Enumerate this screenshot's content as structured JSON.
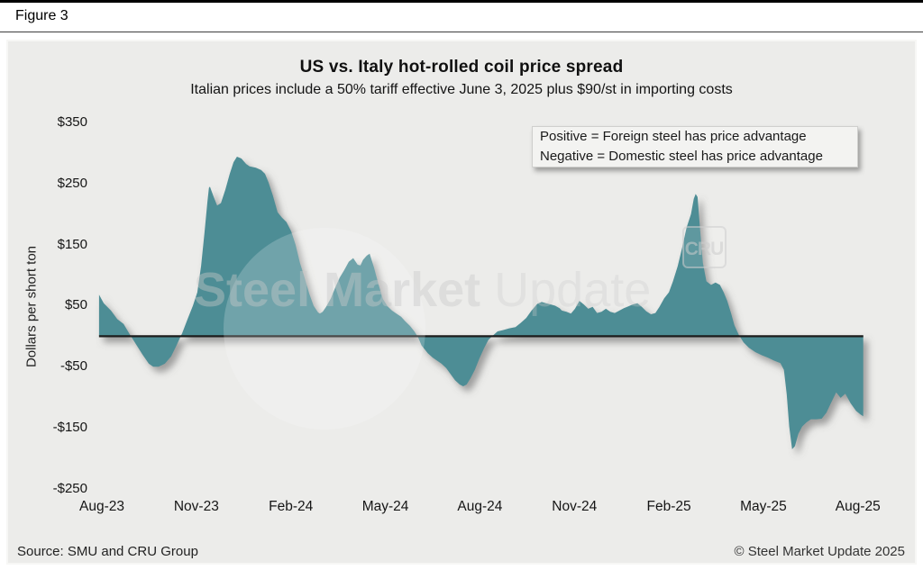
{
  "figure_label": "Figure 3",
  "footer": {
    "source": "Source: SMU and CRU Group",
    "copyright": "© Steel Market Update 2025"
  },
  "watermark": {
    "brand_bold": "Steel Market",
    "brand_light": "Update",
    "cru": "CRU"
  },
  "annotation": {
    "line1": "Positive = Foreign steel has price advantage",
    "line2": "Negative = Domestic steel has price advantage"
  },
  "colors": {
    "area": "#4e8d95",
    "zero_line": "#1b1b1b",
    "panel_bg": "#ececea",
    "annotation_bg": "#f3f3f1"
  },
  "chart_data": {
    "type": "area",
    "title": "US vs. Italy hot-rolled coil price spread",
    "subtitle": "Italian prices include a 50% tariff effective June 3, 2025 plus $90/st in importing costs",
    "ylabel": "Dollars per short ton",
    "xlabel": "",
    "ylim": [
      -250,
      350
    ],
    "x_unit": "months since Aug-2023",
    "grid": false,
    "legend_position": "none",
    "y_ticks": [
      {
        "value": 350,
        "label": "$350"
      },
      {
        "value": 250,
        "label": "$250"
      },
      {
        "value": 150,
        "label": "$150"
      },
      {
        "value": 50,
        "label": "$50"
      },
      {
        "value": -50,
        "label": "-$50"
      },
      {
        "value": -150,
        "label": "-$150"
      },
      {
        "value": -250,
        "label": "-$250"
      }
    ],
    "x_ticks": [
      {
        "month": 0,
        "label": "Aug-23"
      },
      {
        "month": 3,
        "label": "Nov-23"
      },
      {
        "month": 6,
        "label": "Feb-24"
      },
      {
        "month": 9,
        "label": "May-24"
      },
      {
        "month": 12,
        "label": "Aug-24"
      },
      {
        "month": 15,
        "label": "Nov-24"
      },
      {
        "month": 18,
        "label": "Feb-25"
      },
      {
        "month": 21,
        "label": "May-25"
      },
      {
        "month": 24,
        "label": "Aug-25"
      }
    ],
    "series": [
      {
        "name": "US minus Italy HRC price spread ($/short ton)",
        "points": [
          [
            -0.09,
            68
          ],
          [
            0.06,
            54
          ],
          [
            0.29,
            42
          ],
          [
            0.49,
            28
          ],
          [
            0.69,
            20
          ],
          [
            0.92,
            0
          ],
          [
            1.12,
            -16
          ],
          [
            1.29,
            -30
          ],
          [
            1.49,
            -45
          ],
          [
            1.63,
            -50
          ],
          [
            1.8,
            -50
          ],
          [
            2.0,
            -45
          ],
          [
            2.2,
            -33
          ],
          [
            2.37,
            -15
          ],
          [
            2.55,
            5
          ],
          [
            2.72,
            28
          ],
          [
            2.89,
            50
          ],
          [
            3.03,
            72
          ],
          [
            3.15,
            115
          ],
          [
            3.26,
            170
          ],
          [
            3.35,
            220
          ],
          [
            3.4,
            243
          ],
          [
            3.43,
            245
          ],
          [
            3.55,
            228
          ],
          [
            3.66,
            214
          ],
          [
            3.78,
            218
          ],
          [
            3.92,
            240
          ],
          [
            4.06,
            266
          ],
          [
            4.18,
            285
          ],
          [
            4.29,
            294
          ],
          [
            4.43,
            291
          ],
          [
            4.58,
            282
          ],
          [
            4.69,
            278
          ],
          [
            4.89,
            276
          ],
          [
            5.06,
            272
          ],
          [
            5.18,
            266
          ],
          [
            5.29,
            252
          ],
          [
            5.43,
            230
          ],
          [
            5.58,
            203
          ],
          [
            5.72,
            194
          ],
          [
            5.86,
            187
          ],
          [
            6.01,
            172
          ],
          [
            6.15,
            150
          ],
          [
            6.29,
            120
          ],
          [
            6.44,
            95
          ],
          [
            6.58,
            70
          ],
          [
            6.72,
            50
          ],
          [
            6.86,
            39
          ],
          [
            6.92,
            37
          ],
          [
            7.01,
            40
          ],
          [
            7.12,
            48
          ],
          [
            7.27,
            62
          ],
          [
            7.41,
            80
          ],
          [
            7.55,
            96
          ],
          [
            7.69,
            108
          ],
          [
            7.84,
            122
          ],
          [
            7.98,
            128
          ],
          [
            8.12,
            117
          ],
          [
            8.21,
            116
          ],
          [
            8.29,
            125
          ],
          [
            8.41,
            132
          ],
          [
            8.5,
            135
          ],
          [
            8.64,
            112
          ],
          [
            8.78,
            85
          ],
          [
            8.92,
            61
          ],
          [
            9.07,
            49
          ],
          [
            9.21,
            42
          ],
          [
            9.35,
            37
          ],
          [
            9.5,
            32
          ],
          [
            9.64,
            24
          ],
          [
            9.78,
            17
          ],
          [
            9.92,
            8
          ],
          [
            10.04,
            -2
          ],
          [
            10.15,
            -15
          ],
          [
            10.35,
            -28
          ],
          [
            10.5,
            -35
          ],
          [
            10.64,
            -40
          ],
          [
            10.78,
            -45
          ],
          [
            10.93,
            -52
          ],
          [
            11.07,
            -62
          ],
          [
            11.21,
            -72
          ],
          [
            11.36,
            -79
          ],
          [
            11.47,
            -82
          ],
          [
            11.58,
            -79
          ],
          [
            11.7,
            -69
          ],
          [
            11.84,
            -55
          ],
          [
            11.98,
            -37
          ],
          [
            12.13,
            -20
          ],
          [
            12.27,
            -6
          ],
          [
            12.41,
            1
          ],
          [
            12.56,
            8
          ],
          [
            12.73,
            10
          ],
          [
            12.93,
            13
          ],
          [
            13.13,
            15
          ],
          [
            13.3,
            22
          ],
          [
            13.47,
            30
          ],
          [
            13.64,
            42
          ],
          [
            13.82,
            53
          ],
          [
            13.96,
            56
          ],
          [
            14.1,
            54
          ],
          [
            14.25,
            52
          ],
          [
            14.39,
            50
          ],
          [
            14.53,
            46
          ],
          [
            14.6,
            42
          ],
          [
            14.75,
            40
          ],
          [
            14.89,
            37
          ],
          [
            15.02,
            45
          ],
          [
            15.16,
            58
          ],
          [
            15.3,
            52
          ],
          [
            15.44,
            45
          ],
          [
            15.58,
            48
          ],
          [
            15.72,
            38
          ],
          [
            15.86,
            40
          ],
          [
            16.0,
            45
          ],
          [
            16.14,
            40
          ],
          [
            16.28,
            38
          ],
          [
            16.43,
            42
          ],
          [
            16.57,
            46
          ],
          [
            16.71,
            49
          ],
          [
            16.85,
            52
          ],
          [
            17.0,
            54
          ],
          [
            17.14,
            48
          ],
          [
            17.28,
            41
          ],
          [
            17.43,
            36
          ],
          [
            17.57,
            38
          ],
          [
            17.7,
            48
          ],
          [
            17.85,
            62
          ],
          [
            18.0,
            72
          ],
          [
            18.13,
            90
          ],
          [
            18.28,
            115
          ],
          [
            18.42,
            145
          ],
          [
            18.56,
            178
          ],
          [
            18.7,
            200
          ],
          [
            18.79,
            225
          ],
          [
            18.85,
            233
          ],
          [
            18.91,
            228
          ],
          [
            18.99,
            175
          ],
          [
            19.08,
            120
          ],
          [
            19.19,
            90
          ],
          [
            19.34,
            84
          ],
          [
            19.48,
            88
          ],
          [
            19.62,
            84
          ],
          [
            19.74,
            72
          ],
          [
            19.85,
            58
          ],
          [
            19.97,
            38
          ],
          [
            20.08,
            18
          ],
          [
            20.22,
            2
          ],
          [
            20.37,
            -10
          ],
          [
            20.54,
            -19
          ],
          [
            20.74,
            -26
          ],
          [
            20.94,
            -31
          ],
          [
            21.14,
            -35
          ],
          [
            21.34,
            -40
          ],
          [
            21.54,
            -44
          ],
          [
            21.65,
            -55
          ],
          [
            21.74,
            -95
          ],
          [
            21.82,
            -148
          ],
          [
            21.91,
            -185
          ],
          [
            22.0,
            -180
          ],
          [
            22.11,
            -160
          ],
          [
            22.23,
            -148
          ],
          [
            22.37,
            -141
          ],
          [
            22.51,
            -136
          ],
          [
            22.68,
            -136
          ],
          [
            22.85,
            -135
          ],
          [
            23.0,
            -125
          ],
          [
            23.14,
            -110
          ],
          [
            23.31,
            -92
          ],
          [
            23.45,
            -101
          ],
          [
            23.6,
            -94
          ],
          [
            23.77,
            -110
          ],
          [
            23.94,
            -122
          ],
          [
            24.08,
            -128
          ],
          [
            24.17,
            -131
          ]
        ]
      }
    ],
    "annotations": [
      "Positive = Foreign steel has price advantage",
      "Negative = Domestic steel has price advantage"
    ]
  }
}
